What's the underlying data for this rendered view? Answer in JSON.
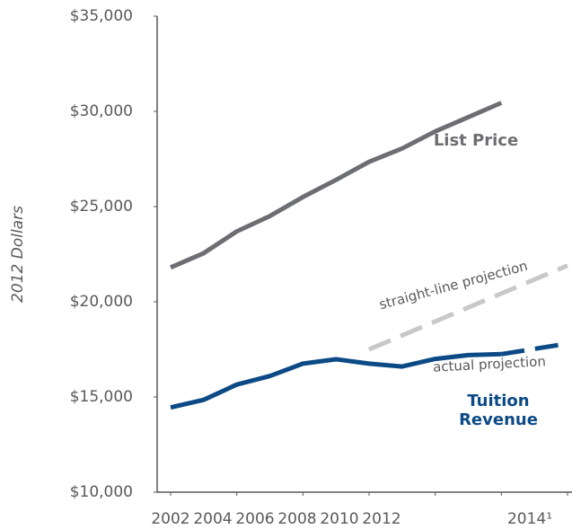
{
  "chart_data": {
    "type": "line",
    "y_label": "2012 Dollars",
    "xlim": [
      2002,
      2014
    ],
    "xticks": [
      2002,
      2004,
      2006,
      2008,
      2010,
      2012,
      {
        "value": 2014,
        "label": "2014¹"
      }
    ],
    "ylim": [
      10000,
      35000
    ],
    "yticks": [
      {
        "value": 10000,
        "label": "$10,000"
      },
      {
        "value": 15000,
        "label": "$15,000"
      },
      {
        "value": 20000,
        "label": "$20,000"
      },
      {
        "value": 25000,
        "label": "$25,000"
      },
      {
        "value": 30000,
        "label": "$30,000"
      },
      {
        "value": 35000,
        "label": "$35,000"
      }
    ],
    "series": [
      {
        "name": "List Price",
        "color": "#6d6e71",
        "dashed": false,
        "x": [
          2002,
          2003,
          2004,
          2005,
          2006,
          2007,
          2008,
          2009,
          2010,
          2011,
          2012
        ],
        "values": [
          21800,
          22550,
          23700,
          24500,
          25500,
          26400,
          27350,
          28050,
          28950,
          29700,
          30450
        ]
      },
      {
        "name": "Tuition Revenue",
        "color": "#0c4a86",
        "dashed": false,
        "x": [
          2002,
          2003,
          2004,
          2005,
          2006,
          2007,
          2008,
          2009,
          2010,
          2011,
          2012
        ],
        "values": [
          14450,
          14850,
          15650,
          16100,
          16750,
          16980,
          16750,
          16600,
          17000,
          17200,
          17250
        ]
      },
      {
        "name": "straight-line projection",
        "color": "#c8c8c8",
        "dashed": true,
        "x": [
          2008,
          2014
        ],
        "values": [
          17500,
          21900
        ]
      },
      {
        "name": "actual projection",
        "color": "#0c4a86",
        "dashed": true,
        "x": [
          2012,
          2014
        ],
        "values": [
          17250,
          17800
        ]
      }
    ]
  }
}
